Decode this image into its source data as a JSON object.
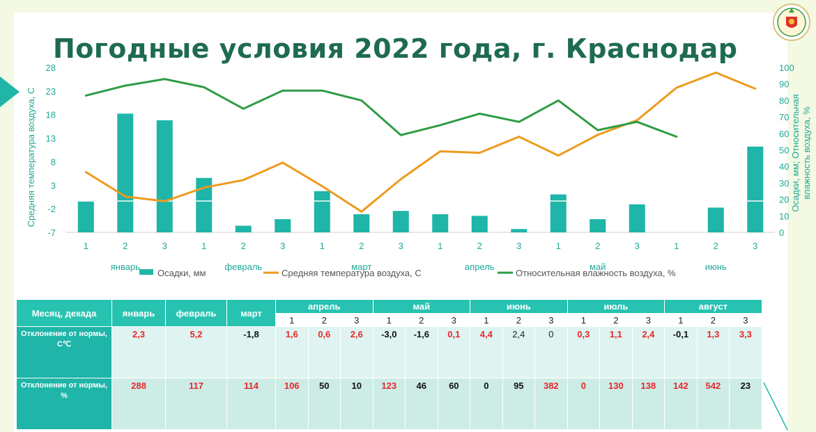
{
  "title": "Погодные условия 2022 года, г. Краснодар",
  "colors": {
    "bars": "#1fb5a8",
    "temperature": "#ed9a1d",
    "humidity": "#2e9c44",
    "title": "#1e6b51",
    "axis_text": "#1fa898",
    "positive_deviation": "#e8262a"
  },
  "logo": {
    "icon": "academy-emblem-icon"
  },
  "chart_data": {
    "type": "bar+line",
    "categories": [
      "1",
      "2",
      "3",
      "1",
      "2",
      "3",
      "1",
      "2",
      "3",
      "1",
      "2",
      "3",
      "1",
      "2",
      "3",
      "1",
      "2",
      "3"
    ],
    "months": [
      "январь",
      "февраль",
      "март",
      "апрель",
      "май",
      "июнь"
    ],
    "ylabel_left": "Средняя температура воздуха, С",
    "ylabel_right": "Осадки, мм; Относительная влажность воздуха, %",
    "y_left_ticks": [
      "28",
      "23",
      "18",
      "13",
      "8",
      "3",
      "-2",
      "-7"
    ],
    "y_left_range": [
      -7,
      28
    ],
    "y_right_ticks": [
      "100",
      "90",
      "80",
      "70",
      "60",
      "50",
      "40",
      "30",
      "20",
      "10",
      "0"
    ],
    "y_right_range": [
      0,
      100
    ],
    "legend_position": "bottom",
    "series": [
      {
        "name": "Осадки, мм",
        "type": "bar",
        "axis": "right",
        "values": [
          19,
          72,
          68,
          33,
          4,
          8,
          25,
          11,
          13,
          11,
          10,
          2,
          23,
          8,
          17,
          null,
          15,
          52
        ]
      },
      {
        "name": "Средняя температура воздуха, С",
        "type": "line",
        "axis": "left",
        "values": [
          5.8,
          0.6,
          -0.4,
          2.5,
          4.1,
          7.8,
          2.8,
          -2.6,
          4.3,
          10.2,
          9.9,
          13.3,
          9.3,
          13.7,
          16.8,
          23.7,
          26.9,
          23.5
        ]
      },
      {
        "name": "Относительная влажность воздуха, %",
        "type": "line",
        "axis": "right",
        "values": [
          83,
          89,
          93,
          88,
          75,
          86,
          86,
          80,
          59,
          65,
          72,
          67,
          80,
          62,
          67,
          58,
          null,
          null
        ]
      }
    ]
  },
  "table": {
    "corner": "Месяц, декада",
    "months": [
      "январь",
      "февраль",
      "март",
      "апрель",
      "май",
      "июнь",
      "июль",
      "август"
    ],
    "decades": [
      "1",
      "2",
      "3"
    ],
    "rows": [
      {
        "label": "Отклонение от нормы, С℃",
        "values": [
          "2,3",
          "5,2",
          "-1,8",
          "1,6",
          "0,6",
          "2,6",
          "-3,0",
          "-1,6",
          "0,1",
          "4,4",
          "2,4",
          "0",
          "0,3",
          "1,1",
          "2,4",
          "-0,1",
          "1,3",
          "3,3"
        ]
      },
      {
        "label": "Отклонение от нормы, %",
        "values": [
          "288",
          "117",
          "114",
          "106",
          "50",
          "10",
          "123",
          "46",
          "60",
          "0",
          "95",
          "382",
          "0",
          "130",
          "138",
          "142",
          "542",
          "23"
        ]
      }
    ]
  }
}
